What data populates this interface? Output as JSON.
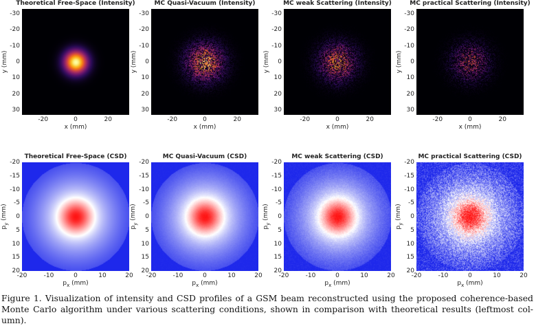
{
  "rows": [
    {
      "kind": "intensity",
      "xlabel": "x (mm)",
      "ylabel": "y (mm)",
      "xticks": [
        "-20",
        "0",
        "20"
      ],
      "yticks": [
        "-30",
        "-20",
        "-10",
        "0",
        "10",
        "20",
        "30"
      ],
      "panels": [
        {
          "title": "Theoretical Free-Space (Intensity)",
          "noise": 0.0,
          "peak": 1.0
        },
        {
          "title": "MC Quasi-Vacuum (Intensity)",
          "noise": 0.35,
          "peak": 0.8
        },
        {
          "title": "MC weak Scattering (Intensity)",
          "noise": 0.55,
          "peak": 0.7
        },
        {
          "title": "MC practical Scattering (Intensity)",
          "noise": 0.8,
          "peak": 0.55
        }
      ]
    },
    {
      "kind": "csd",
      "xlabel_main": "p",
      "xlabel_sub": "x",
      "xlabel_unit": " (mm)",
      "ylabel_main": "p",
      "ylabel_sub": "y",
      "ylabel_unit": " (mm)",
      "xticks": [
        "-20",
        "-10",
        "0",
        "10",
        "20"
      ],
      "yticks": [
        "-20",
        "-15",
        "-10",
        "-5",
        "0",
        "5",
        "10",
        "15",
        "20"
      ],
      "panels": [
        {
          "title": "Theoretical Free-Space (CSD)",
          "noise": 0.0
        },
        {
          "title": "MC Quasi-Vacuum (CSD)",
          "noise": 0.02
        },
        {
          "title": "MC weak Scattering (CSD)",
          "noise": 0.06
        },
        {
          "title": "MC practical Scattering (CSD)",
          "noise": 0.35
        }
      ]
    }
  ],
  "caption": "Figure 1. Visualization of intensity and CSD profiles of a GSM beam reconstructed using the proposed coherence-based Monte Carlo algorithm under various scattering conditions, shown in comparison with theoretical results (leftmost col-umn)."
}
